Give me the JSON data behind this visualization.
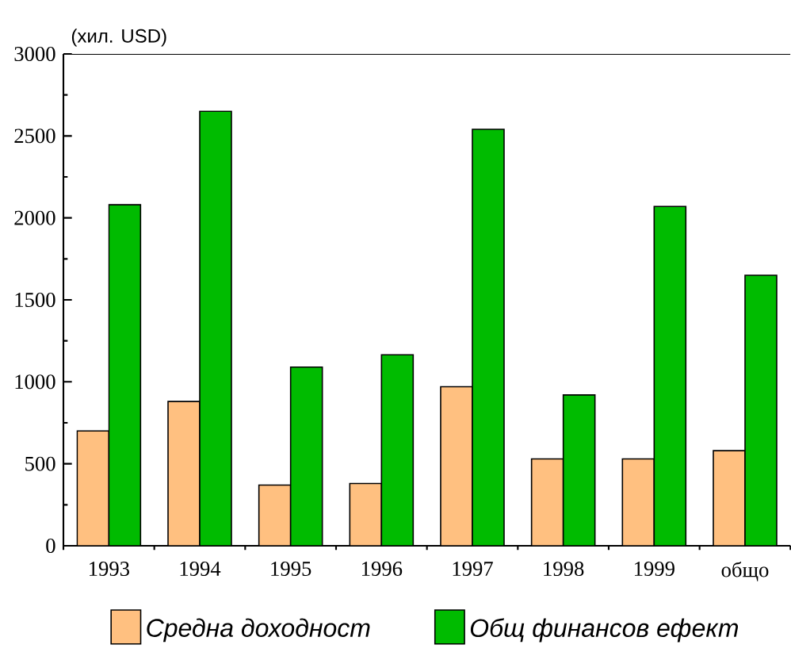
{
  "chart_data": {
    "type": "bar",
    "ylabel": "(хил. USD)",
    "categories": [
      "1993",
      "1994",
      "1995",
      "1996",
      "1997",
      "1998",
      "1999",
      "общо"
    ],
    "series": [
      {
        "name": "Средна доходност",
        "color": "#ffc080",
        "values": [
          700,
          880,
          370,
          380,
          970,
          530,
          530,
          580
        ]
      },
      {
        "name": "Общ финансов ефект",
        "color": "#00bb00",
        "values": [
          2080,
          2650,
          1090,
          1165,
          2540,
          920,
          2070,
          1650
        ]
      }
    ],
    "ylim": [
      0,
      3000
    ],
    "yticks": [
      0,
      500,
      1000,
      1500,
      2000,
      2500,
      3000
    ],
    "grid": false,
    "legend": "bottom"
  }
}
